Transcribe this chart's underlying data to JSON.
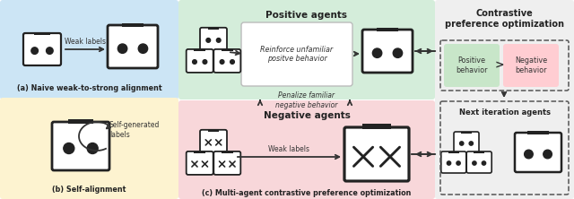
{
  "fig_width": 6.4,
  "fig_height": 2.22,
  "dpi": 100,
  "bg_color": "#ffffff",
  "panel_a_bg": "#cce5f5",
  "panel_b_bg": "#fdf3d0",
  "panel_c_pos_bg": "#d4edda",
  "panel_c_neg_bg": "#f8d7da",
  "panel_right_bg": "#efefef",
  "panel_cpo_pos_bg": "#c8e6c9",
  "panel_cpo_neg_bg": "#ffcdd2",
  "label_a": "(a) Naive weak-to-strong alignment",
  "label_b": "(b) Self-alignment",
  "label_c": "(c) Multi-agent contrastive preference optimization",
  "pos_agents_title": "Positive agents",
  "neg_agents_title": "Negative agents",
  "cpo_title": "Contrastive\npreference optimization",
  "reinforce_text": "Reinforce unfamiliar\npositve behavior",
  "penalize_text": "Penalize familiar\nnegative behavior",
  "weak_labels_a": "Weak labels",
  "weak_labels_c": "Weak labels",
  "self_labels": "Self-generated\nlabels",
  "pos_behavior": "Positive\nbehavior",
  "neg_behavior": "Negative\nbehavior",
  "next_iter": "Next iteration agents",
  "arrow_color": "#333333",
  "border_color": "#222222"
}
